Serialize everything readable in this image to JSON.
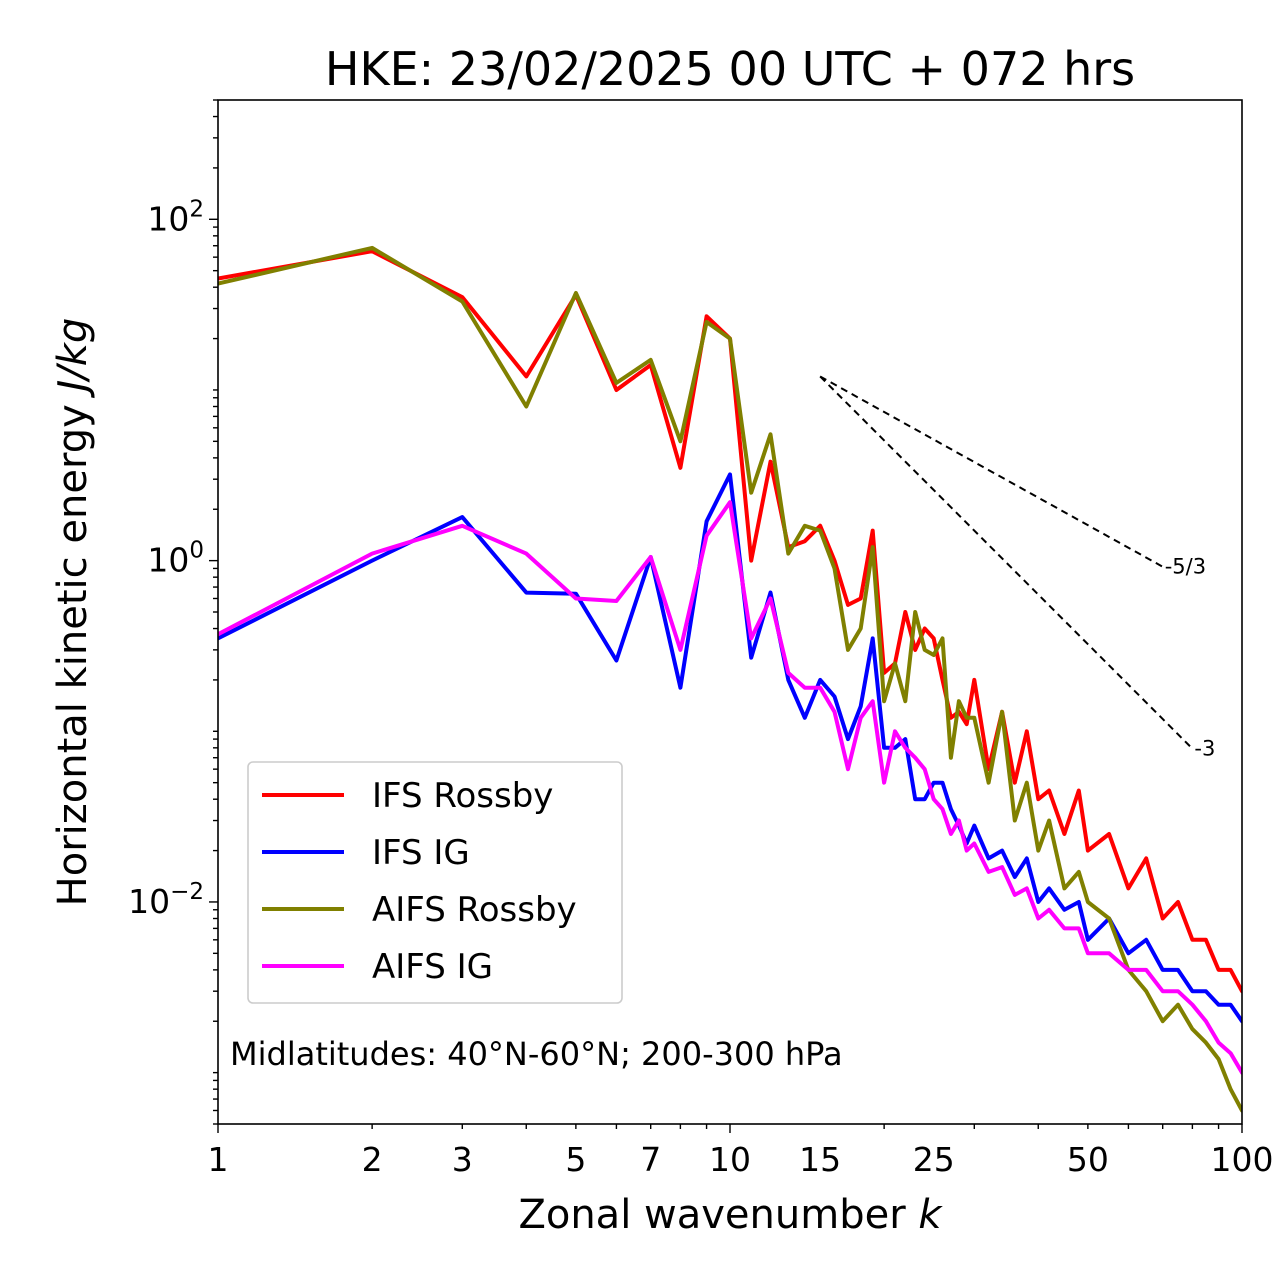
{
  "chart_data": {
    "type": "line",
    "title": "HKE: 23/02/2025 00 UTC + 072 hrs",
    "xlabel": "Zonal wavenumber k",
    "ylabel": "Horizontal kinetic energy J/kg",
    "x_scale": "log",
    "y_scale": "log",
    "xlim": [
      1,
      100
    ],
    "ylim": [
      0.0005,
      500
    ],
    "x_ticks": [
      1,
      2,
      3,
      5,
      7,
      10,
      15,
      25,
      50,
      100
    ],
    "x_tick_labels": [
      "1",
      "2",
      "3",
      "5",
      "7",
      "10",
      "15",
      "25",
      "50",
      "100"
    ],
    "y_ticks": [
      0.01,
      1,
      100
    ],
    "y_tick_labels": [
      {
        "base": "10",
        "exp": "−2"
      },
      {
        "base": "10",
        "exp": "0"
      },
      {
        "base": "10",
        "exp": "2"
      }
    ],
    "grid": false,
    "legend_position": "lower-left",
    "annotation": "Midlatitudes: 40°N-60°N; 200-300 hPa",
    "reference_slopes": [
      {
        "label": "-5/3",
        "slope": -1.6667,
        "x_start": 15,
        "x_end": 70,
        "y_start": 12
      },
      {
        "label": "-3",
        "slope": -3,
        "x_start": 15,
        "x_end": 80,
        "y_start": 12
      }
    ],
    "series": [
      {
        "name": "IFS Rossby",
        "color": "#ff0000",
        "x": [
          1,
          2,
          3,
          4,
          5,
          6,
          7,
          8,
          9,
          10,
          11,
          12,
          13,
          14,
          15,
          16,
          17,
          18,
          19,
          20,
          21,
          22,
          23,
          24,
          25,
          26,
          27,
          28,
          29,
          30,
          32,
          34,
          36,
          38,
          40,
          42,
          45,
          48,
          50,
          55,
          60,
          65,
          70,
          75,
          80,
          85,
          90,
          95,
          100
        ],
        "y": [
          45,
          65,
          35,
          12,
          36,
          10,
          14,
          3.5,
          27,
          20,
          1.0,
          3.8,
          1.2,
          1.3,
          1.6,
          1.0,
          0.55,
          0.6,
          1.5,
          0.22,
          0.25,
          0.5,
          0.3,
          0.4,
          0.35,
          0.2,
          0.12,
          0.13,
          0.11,
          0.2,
          0.06,
          0.13,
          0.05,
          0.1,
          0.04,
          0.045,
          0.025,
          0.045,
          0.02,
          0.025,
          0.012,
          0.018,
          0.008,
          0.01,
          0.006,
          0.006,
          0.004,
          0.004,
          0.003
        ]
      },
      {
        "name": "IFS IG",
        "color": "#0000ff",
        "x": [
          1,
          2,
          3,
          4,
          5,
          6,
          7,
          8,
          9,
          10,
          11,
          12,
          13,
          14,
          15,
          16,
          17,
          18,
          19,
          20,
          21,
          22,
          23,
          24,
          25,
          26,
          27,
          28,
          29,
          30,
          32,
          34,
          36,
          38,
          40,
          42,
          45,
          48,
          50,
          55,
          60,
          65,
          70,
          75,
          80,
          85,
          90,
          95,
          100
        ],
        "y": [
          0.35,
          1.0,
          1.8,
          0.65,
          0.64,
          0.26,
          1.05,
          0.18,
          1.7,
          3.2,
          0.27,
          0.65,
          0.2,
          0.12,
          0.2,
          0.16,
          0.09,
          0.14,
          0.35,
          0.08,
          0.08,
          0.09,
          0.04,
          0.04,
          0.05,
          0.05,
          0.035,
          0.028,
          0.022,
          0.028,
          0.018,
          0.02,
          0.014,
          0.018,
          0.01,
          0.012,
          0.009,
          0.01,
          0.006,
          0.008,
          0.005,
          0.006,
          0.004,
          0.004,
          0.003,
          0.003,
          0.0025,
          0.0025,
          0.002
        ]
      },
      {
        "name": "AIFS Rossby",
        "color": "#808000",
        "x": [
          1,
          2,
          3,
          4,
          5,
          6,
          7,
          8,
          9,
          10,
          11,
          12,
          13,
          14,
          15,
          16,
          17,
          18,
          19,
          20,
          21,
          22,
          23,
          24,
          25,
          26,
          27,
          28,
          29,
          30,
          32,
          34,
          36,
          38,
          40,
          42,
          45,
          48,
          50,
          55,
          60,
          65,
          70,
          75,
          80,
          85,
          90,
          95,
          100
        ],
        "y": [
          42,
          68,
          33,
          8,
          37,
          11,
          15,
          5,
          25,
          20,
          2.5,
          5.5,
          1.1,
          1.6,
          1.5,
          0.9,
          0.3,
          0.4,
          1.2,
          0.15,
          0.25,
          0.15,
          0.5,
          0.3,
          0.28,
          0.35,
          0.07,
          0.15,
          0.12,
          0.12,
          0.05,
          0.13,
          0.03,
          0.05,
          0.02,
          0.03,
          0.012,
          0.015,
          0.01,
          0.008,
          0.004,
          0.003,
          0.002,
          0.0025,
          0.0018,
          0.0015,
          0.0012,
          0.0008,
          0.0006
        ]
      },
      {
        "name": "AIFS IG",
        "color": "#ff00ff",
        "x": [
          1,
          2,
          3,
          4,
          5,
          6,
          7,
          8,
          9,
          10,
          11,
          12,
          13,
          14,
          15,
          16,
          17,
          18,
          19,
          20,
          21,
          22,
          23,
          24,
          25,
          26,
          27,
          28,
          29,
          30,
          32,
          34,
          36,
          38,
          40,
          42,
          45,
          48,
          50,
          55,
          60,
          65,
          70,
          75,
          80,
          85,
          90,
          95,
          100
        ],
        "y": [
          0.37,
          1.1,
          1.6,
          1.1,
          0.6,
          0.58,
          1.05,
          0.3,
          1.4,
          2.2,
          0.35,
          0.6,
          0.22,
          0.18,
          0.18,
          0.13,
          0.06,
          0.12,
          0.15,
          0.05,
          0.1,
          0.08,
          0.07,
          0.06,
          0.04,
          0.035,
          0.025,
          0.03,
          0.02,
          0.022,
          0.015,
          0.016,
          0.011,
          0.012,
          0.008,
          0.009,
          0.007,
          0.007,
          0.005,
          0.005,
          0.004,
          0.004,
          0.003,
          0.003,
          0.0025,
          0.002,
          0.0015,
          0.0013,
          0.001
        ]
      }
    ]
  }
}
